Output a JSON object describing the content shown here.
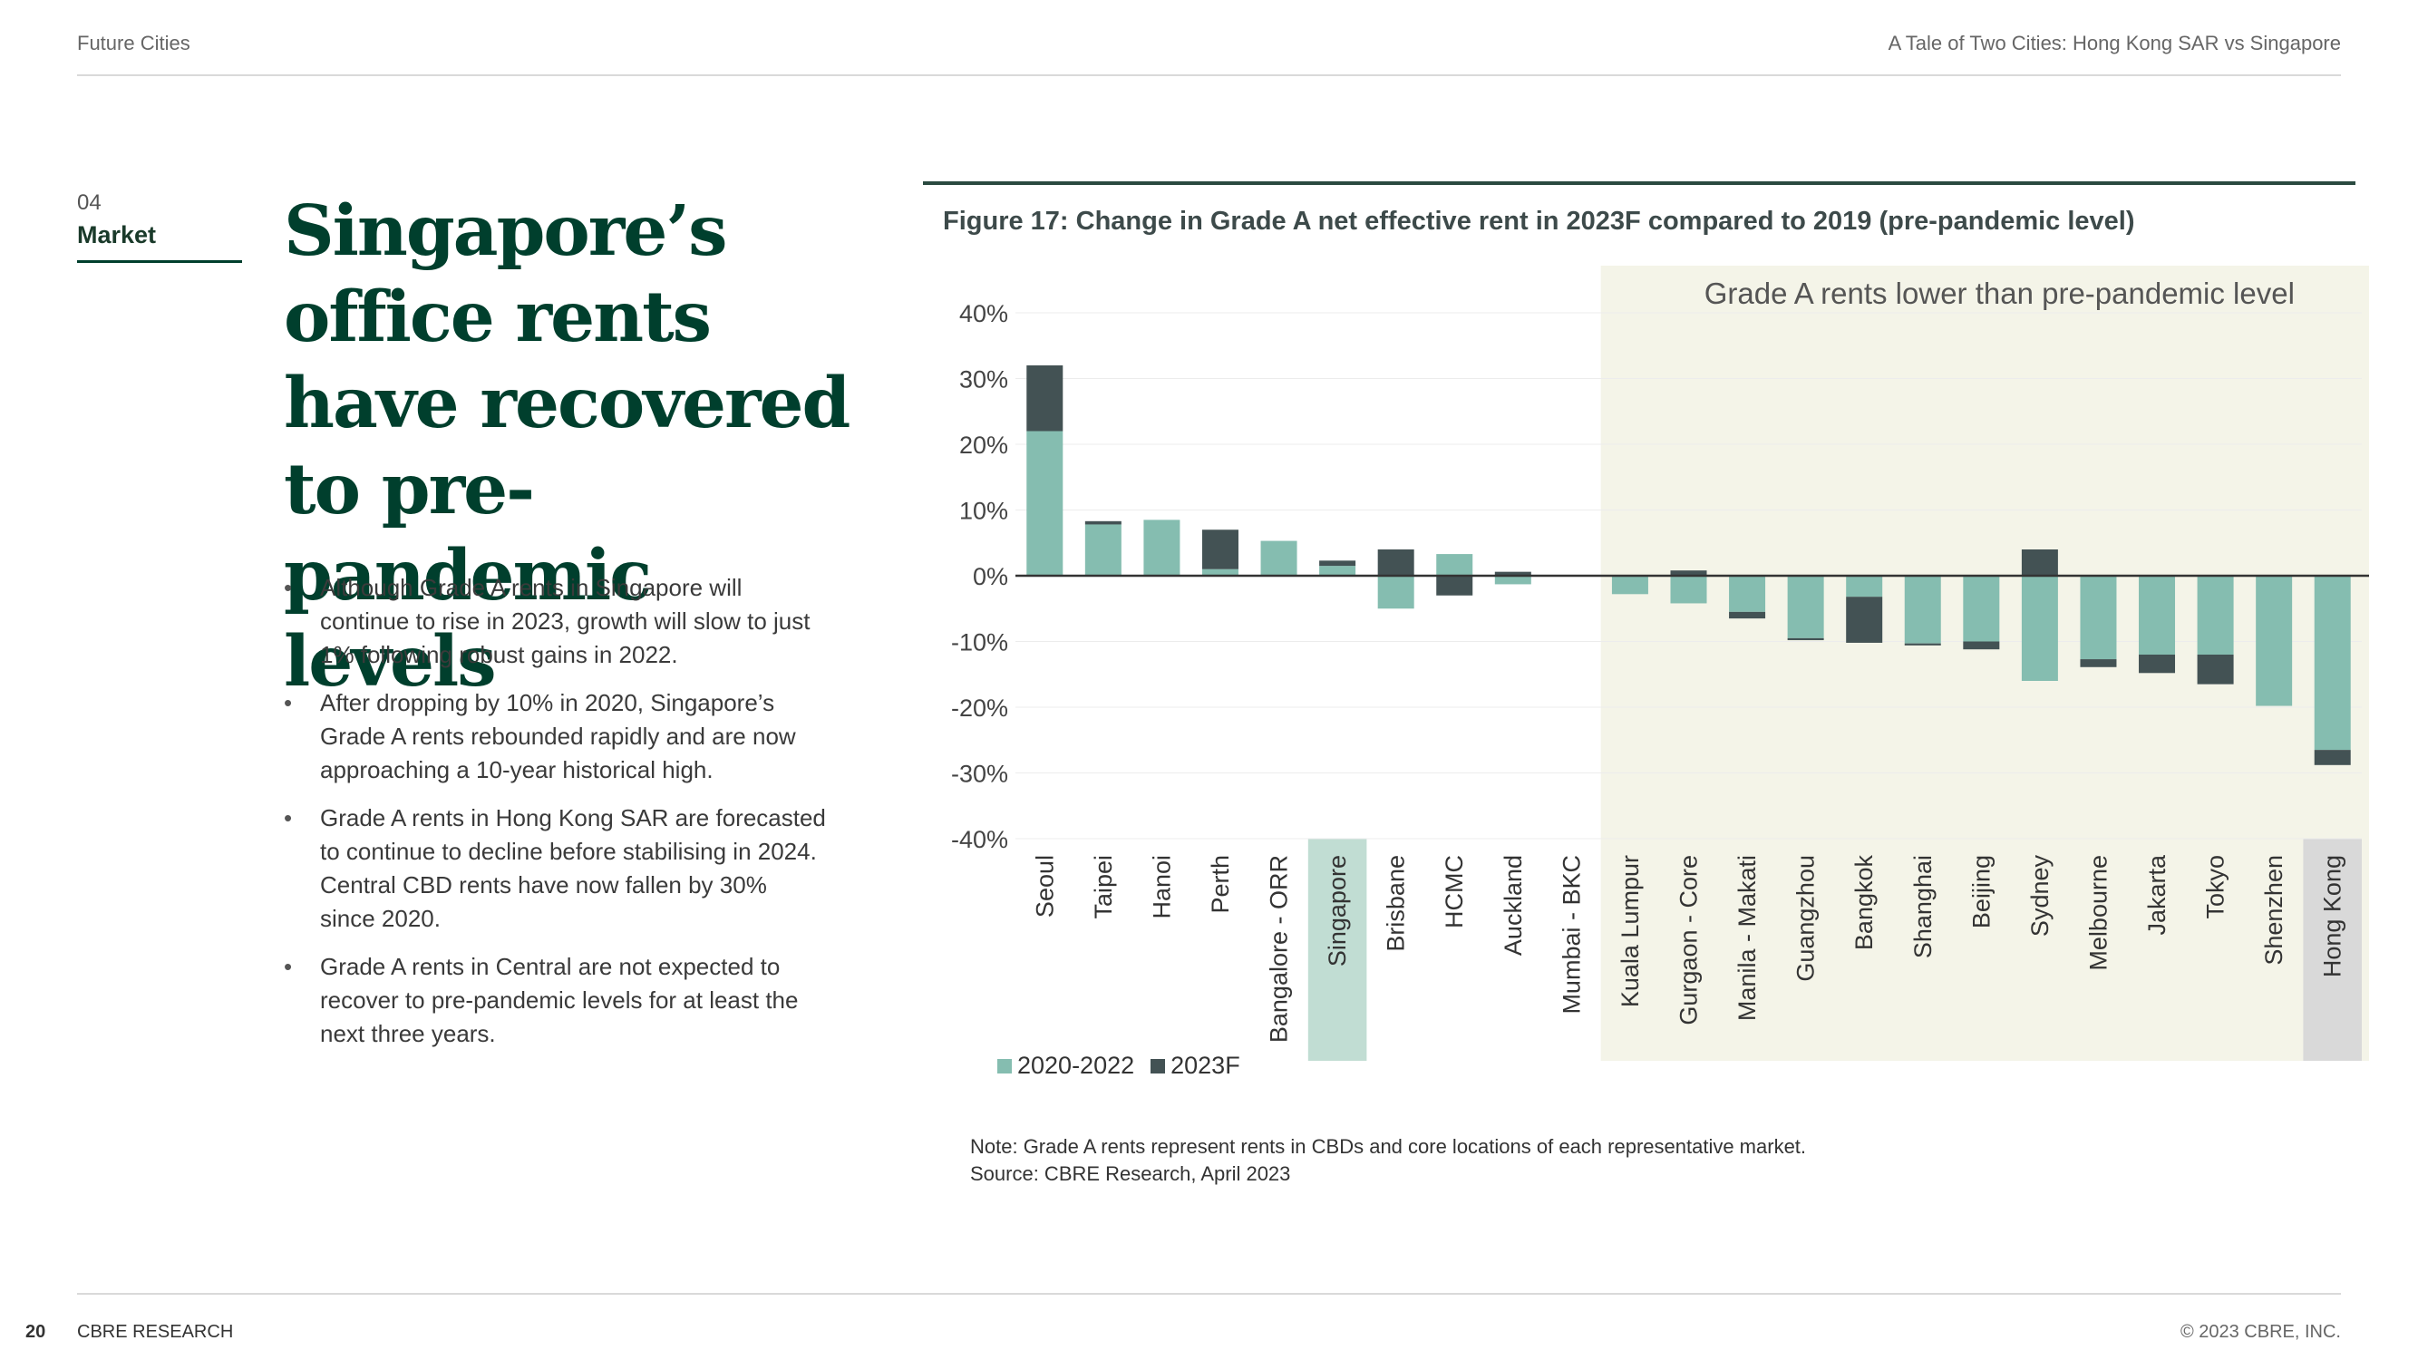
{
  "header": {
    "left": "Future Cities",
    "right": "A Tale of Two Cities: Hong Kong SAR vs Singapore"
  },
  "section": {
    "number": "04",
    "name": "Market"
  },
  "headline": "Singapore’s office rents have recovered to pre-pandemic levels",
  "bullets": [
    "Although Grade A rents in Singapore will continue to rise in 2023, growth will slow to just 1% following robust gains in 2022.",
    "After dropping by 10% in 2020, Singapore’s Grade A rents rebounded rapidly and are now approaching a 10-year historical high.",
    "Grade A rents in Hong Kong SAR are forecasted to continue to decline before stabilising in 2024. Central CBD rents have now fallen by 30% since 2020.",
    "Grade A rents in Central are not expected to recover to pre-pandemic levels for at least the next three years."
  ],
  "figure": {
    "title": "Figure 17: Change in Grade A net effective rent in 2023F compared to 2019 (pre-pandemic level)",
    "note": "Note: Grade A rents represent rents in CBDs and core locations of each representative market.",
    "source": "Source: CBRE Research, April 2023"
  },
  "footer": {
    "page": "20",
    "brand": "CBRE RESEARCH",
    "copyright": "© 2023 CBRE, INC."
  },
  "colors": {
    "series_2020_2022": "#85bdb0",
    "series_2023F": "#435254",
    "shade_region": "#f4f4e8",
    "highlight_singapore": "#c1ddd3",
    "highlight_hongkong": "#d9d9d9"
  },
  "chart_data": {
    "type": "bar",
    "stacked": true,
    "categories": [
      "Seoul",
      "Taipei",
      "Hanoi",
      "Perth",
      "Bangalore - ORR",
      "Singapore",
      "Brisbane",
      "HCMC",
      "Auckland",
      "Mumbai - BKC",
      "Kuala Lumpur",
      "Gurgaon - Core",
      "Manila - Makati",
      "Guangzhou",
      "Bangkok",
      "Shanghai",
      "Beijing",
      "Sydney",
      "Melbourne",
      "Jakarta",
      "Tokyo",
      "Shenzhen",
      "Hong Kong"
    ],
    "series": [
      {
        "name": "2020-2022",
        "values": [
          22,
          7.8,
          8.5,
          1,
          5.3,
          1.5,
          -5,
          3.3,
          -1.3,
          0,
          -2.8,
          -4.2,
          -5.5,
          -9.5,
          -3.2,
          -10.3,
          -10,
          -16,
          -12.7,
          -12,
          -12,
          -19.8,
          -26.5
        ]
      },
      {
        "name": "2023F",
        "values": [
          10,
          0.5,
          0,
          6,
          0,
          0.8,
          4,
          -3,
          0.6,
          0,
          0,
          0.8,
          -1,
          -0.3,
          -7,
          -0.3,
          -1.2,
          4,
          -1.2,
          -2.8,
          -4.5,
          0,
          -2.3
        ]
      }
    ],
    "ylim": [
      -40,
      40
    ],
    "yticks": [
      40,
      30,
      20,
      10,
      0,
      -10,
      -20,
      -30,
      -40
    ],
    "ytick_labels": [
      "40%",
      "30%",
      "20%",
      "10%",
      "0%",
      "-10%",
      "-20%",
      "-30%",
      "-40%"
    ],
    "annotation": "Grade A rents lower than pre-pandemic level",
    "shaded_from_category": "Kuala Lumpur",
    "highlighted_categories": [
      "Singapore",
      "Hong Kong"
    ],
    "legend": "bottom-left"
  }
}
